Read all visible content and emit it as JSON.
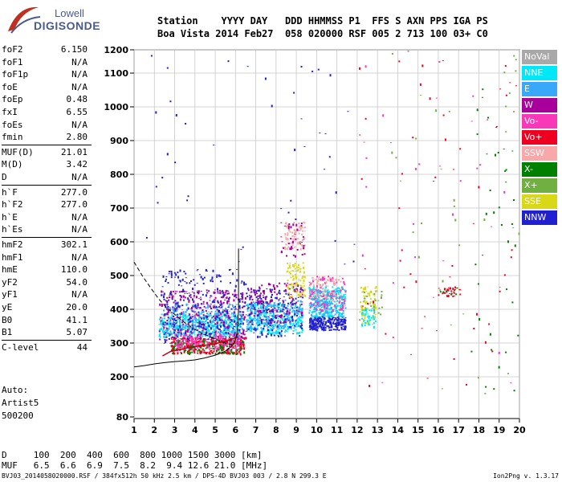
{
  "logo": {
    "line1": "Lowell",
    "line2": "DIGISONDE"
  },
  "header": {
    "row1": "Station    YYYY DAY   DDD HHMMSS P1  FFS S AXN PPS IGA PS",
    "row2": "Boa Vista 2014 Feb27  058 020000 RSF 005 2 713 100 03+ C0"
  },
  "params": [
    {
      "label": "foF2",
      "value": "6.150"
    },
    {
      "label": "foF1",
      "value": "N/A"
    },
    {
      "label": "foF1p",
      "value": "N/A"
    },
    {
      "label": "foE",
      "value": "N/A"
    },
    {
      "label": "foEp",
      "value": "0.48"
    },
    {
      "label": "fxI",
      "value": "6.55"
    },
    {
      "label": "foEs",
      "value": "N/A"
    },
    {
      "label": "fmin",
      "value": "2.80"
    },
    {
      "label": "MUF(D)",
      "value": "21.01"
    },
    {
      "label": "M(D)",
      "value": "3.42"
    },
    {
      "label": "D",
      "value": "N/A"
    },
    {
      "label": "h`F",
      "value": "277.0"
    },
    {
      "label": "h`F2",
      "value": "277.0"
    },
    {
      "label": "h`E",
      "value": "N/A"
    },
    {
      "label": "h`Es",
      "value": "N/A"
    },
    {
      "label": "hmF2",
      "value": "302.1"
    },
    {
      "label": "hmF1",
      "value": "N/A"
    },
    {
      "label": "hmE",
      "value": "110.0"
    },
    {
      "label": "yF2",
      "value": "54.0"
    },
    {
      "label": "yF1",
      "value": "N/A"
    },
    {
      "label": "yE",
      "value": "20.0"
    },
    {
      "label": "B0",
      "value": "41.1"
    },
    {
      "label": "B1",
      "value": "5.07"
    },
    {
      "label": "C-level",
      "value": "44"
    }
  ],
  "auto": {
    "line1": "Auto:",
    "line2": "Artist5",
    "line3": "500200"
  },
  "legend": [
    {
      "label": "NoVal",
      "color": "#a8a8a8"
    },
    {
      "label": "NNE",
      "color": "#00e8f8"
    },
    {
      "label": "E",
      "color": "#3aa8f8"
    },
    {
      "label": "W",
      "color": "#a8009a"
    },
    {
      "label": "Vo-",
      "color": "#f838b8"
    },
    {
      "label": "Vo+",
      "color": "#f00020"
    },
    {
      "label": "SSW",
      "color": "#f8a8a8"
    },
    {
      "label": "X-",
      "color": "#008000"
    },
    {
      "label": "X+",
      "color": "#70b040"
    },
    {
      "label": "SSE",
      "color": "#d8d818"
    },
    {
      "label": "NNW",
      "color": "#2020d0"
    }
  ],
  "muf_table": {
    "row1": "D     100  200  400  600  800 1000 1500 3000 [km]",
    "row2": "MUF   6.5  6.6  6.9  7.5  8.2  9.4 12.6 21.0 [MHz]"
  },
  "footer": {
    "left": "BVJ03_2014058020000.RSF / 384fx512h 50 kHz 2.5 km / DPS-4D BVJ03 003 / 2.8 N 299.3 E",
    "right": "Ion2Png v. 1.3.17"
  },
  "chart_data": {
    "type": "scatter",
    "title": "",
    "xlabel": "",
    "ylabel": "",
    "xlim": [
      1,
      20
    ],
    "ylim": [
      80,
      1200
    ],
    "grid": true,
    "x_ticks": [
      "1",
      "2",
      "3",
      "4",
      "5",
      "6",
      "7",
      "8",
      "9",
      "10",
      "11",
      "12",
      "13",
      "14",
      "15",
      "16",
      "17",
      "18",
      "19",
      "20"
    ],
    "y_ticks": [
      "80",
      "200",
      "300",
      "400",
      "500",
      "600",
      "700",
      "800",
      "900",
      "1000",
      "1100",
      "1200"
    ],
    "y_tick_values": [
      80,
      200,
      300,
      400,
      500,
      600,
      700,
      800,
      900,
      1000,
      1100,
      1200
    ],
    "clusters": [
      {
        "color": "#00e8f8",
        "xmin": 2.2,
        "xmax": 6.3,
        "ymin": 320,
        "ymax": 390,
        "n": 420
      },
      {
        "color": "#3aa8f8",
        "xmin": 2.4,
        "xmax": 6.3,
        "ymin": 330,
        "ymax": 420,
        "n": 260
      },
      {
        "color": "#a8009a",
        "xmin": 2.2,
        "xmax": 6.5,
        "ymin": 300,
        "ymax": 460,
        "n": 320
      },
      {
        "color": "#2020d0",
        "xmin": 2.3,
        "xmax": 6.5,
        "ymin": 290,
        "ymax": 520,
        "n": 300
      },
      {
        "color": "#f00020",
        "xmin": 2.8,
        "xmax": 6.4,
        "ymin": 270,
        "ymax": 320,
        "n": 260
      },
      {
        "color": "#008000",
        "xmin": 2.8,
        "xmax": 6.4,
        "ymin": 270,
        "ymax": 310,
        "n": 120
      },
      {
        "color": "#f838b8",
        "xmin": 3.0,
        "xmax": 6.2,
        "ymin": 280,
        "ymax": 330,
        "n": 140
      },
      {
        "color": "#00e8f8",
        "xmin": 6.5,
        "xmax": 9.3,
        "ymin": 330,
        "ymax": 420,
        "n": 300
      },
      {
        "color": "#3aa8f8",
        "xmin": 6.5,
        "xmax": 9.3,
        "ymin": 340,
        "ymax": 430,
        "n": 200
      },
      {
        "color": "#2020d0",
        "xmin": 6.5,
        "xmax": 9.3,
        "ymin": 320,
        "ymax": 470,
        "n": 160
      },
      {
        "color": "#a8009a",
        "xmin": 6.6,
        "xmax": 9.3,
        "ymin": 360,
        "ymax": 480,
        "n": 140
      },
      {
        "color": "#d8d818",
        "xmin": 8.5,
        "xmax": 9.4,
        "ymin": 440,
        "ymax": 540,
        "n": 90
      },
      {
        "color": "#f8a8a8",
        "xmin": 8.4,
        "xmax": 9.4,
        "ymin": 580,
        "ymax": 660,
        "n": 70
      },
      {
        "color": "#a8009a",
        "xmin": 8.2,
        "xmax": 9.4,
        "ymin": 560,
        "ymax": 660,
        "n": 40
      },
      {
        "color": "#2020d0",
        "xmin": 9.6,
        "xmax": 11.4,
        "ymin": 340,
        "ymax": 380,
        "n": 220
      },
      {
        "color": "#00e8f8",
        "xmin": 9.6,
        "xmax": 11.4,
        "ymin": 380,
        "ymax": 470,
        "n": 220
      },
      {
        "color": "#3aa8f8",
        "xmin": 9.6,
        "xmax": 11.4,
        "ymin": 380,
        "ymax": 460,
        "n": 130
      },
      {
        "color": "#f838b8",
        "xmin": 9.6,
        "xmax": 11.4,
        "ymin": 400,
        "ymax": 500,
        "n": 100
      },
      {
        "color": "#f8a8a8",
        "xmin": 9.6,
        "xmax": 11.2,
        "ymin": 430,
        "ymax": 500,
        "n": 70
      },
      {
        "color": "#d8d818",
        "xmin": 12.1,
        "xmax": 12.9,
        "ymin": 360,
        "ymax": 470,
        "n": 70
      },
      {
        "color": "#00e8f8",
        "xmin": 12.2,
        "xmax": 12.9,
        "ymin": 350,
        "ymax": 410,
        "n": 40
      },
      {
        "color": "#70b040",
        "xmin": 12.2,
        "xmax": 13.2,
        "ymin": 380,
        "ymax": 460,
        "n": 25
      },
      {
        "color": "#f00020",
        "xmin": 15.8,
        "xmax": 17.2,
        "ymin": 440,
        "ymax": 470,
        "n": 30
      },
      {
        "color": "#008000",
        "xmin": 16.0,
        "xmax": 17.0,
        "ymin": 445,
        "ymax": 465,
        "n": 10
      },
      {
        "color": "#f00020",
        "xmin": 12.0,
        "xmax": 20.0,
        "ymin": 150,
        "ymax": 1200,
        "n": 60
      },
      {
        "color": "#008000",
        "xmin": 17.5,
        "xmax": 20.0,
        "ymin": 150,
        "ymax": 1200,
        "n": 40
      },
      {
        "color": "#2020d0",
        "xmin": 1.5,
        "xmax": 12.0,
        "ymin": 500,
        "ymax": 1200,
        "n": 45
      },
      {
        "color": "#f838b8",
        "xmin": 12.0,
        "xmax": 20.0,
        "ymin": 150,
        "ymax": 1200,
        "n": 30
      },
      {
        "color": "#70b040",
        "xmin": 12.5,
        "xmax": 20.0,
        "ymin": 150,
        "ymax": 1200,
        "n": 30
      }
    ],
    "profile_curve": [
      [
        1.0,
        229
      ],
      [
        1.5,
        233
      ],
      [
        2.0,
        238
      ],
      [
        2.5,
        242
      ],
      [
        3.0,
        245
      ],
      [
        3.5,
        247
      ],
      [
        4.0,
        250
      ],
      [
        4.5,
        256
      ],
      [
        5.0,
        264
      ],
      [
        5.5,
        276
      ],
      [
        5.8,
        290
      ],
      [
        6.0,
        308
      ],
      [
        6.1,
        340
      ],
      [
        6.15,
        400
      ],
      [
        6.15,
        580
      ]
    ],
    "dashed_curve": [
      [
        1.0,
        540
      ],
      [
        1.4,
        500
      ],
      [
        1.8,
        465
      ],
      [
        2.2,
        432
      ],
      [
        2.6,
        405
      ],
      [
        3.0,
        385
      ],
      [
        3.5,
        360
      ],
      [
        4.0,
        340
      ],
      [
        4.5,
        325
      ],
      [
        5.0,
        312
      ],
      [
        5.5,
        300
      ],
      [
        6.0,
        292
      ]
    ],
    "trace_curve": [
      [
        2.4,
        262
      ],
      [
        2.8,
        275
      ],
      [
        3.2,
        280
      ],
      [
        3.6,
        285
      ],
      [
        4.0,
        290
      ],
      [
        4.5,
        293
      ],
      [
        5.0,
        298
      ],
      [
        5.5,
        305
      ],
      [
        6.0,
        315
      ],
      [
        6.15,
        330
      ]
    ]
  }
}
